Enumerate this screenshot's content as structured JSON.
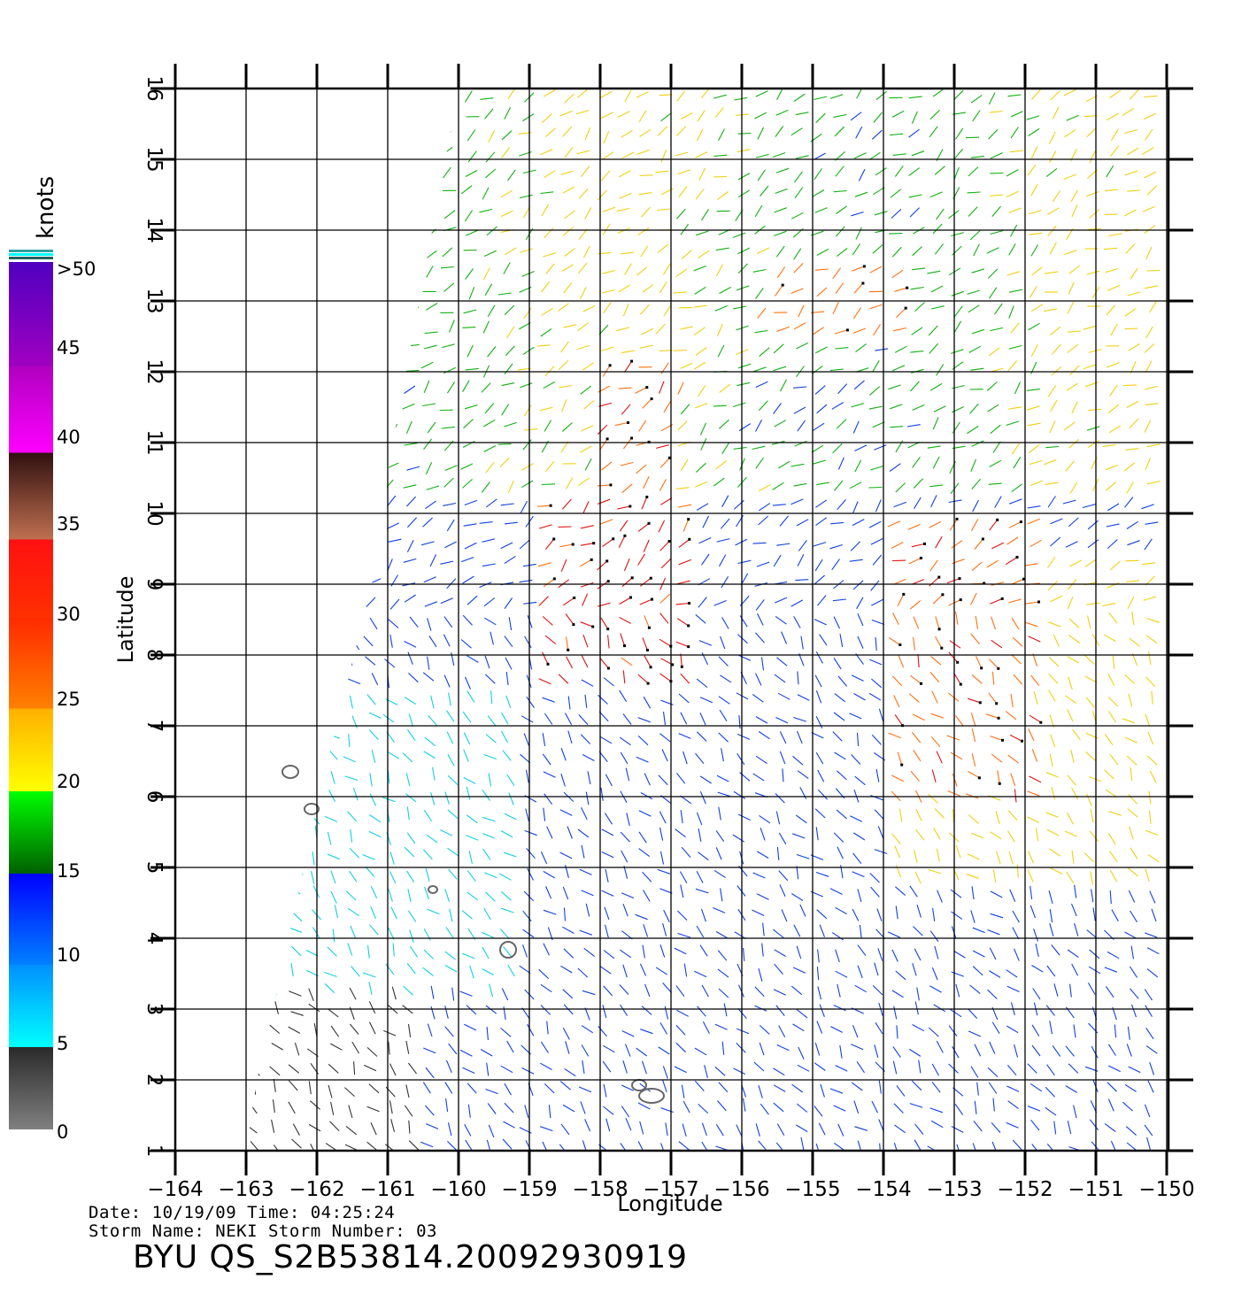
{
  "map": {
    "x_axis_label": "Longitude",
    "y_axis_label": "Latitude",
    "lon_ticks": [
      "−164",
      "−163",
      "−162",
      "−161",
      "−160",
      "−159",
      "−158",
      "−157",
      "−156",
      "−155",
      "−154",
      "−153",
      "−152",
      "−151",
      "−150"
    ],
    "lat_ticks": [
      "1",
      "2",
      "3",
      "4",
      "5",
      "6",
      "7",
      "8",
      "9",
      "10",
      "11",
      "12",
      "13",
      "14",
      "15",
      "16"
    ],
    "lon_range": [
      -164,
      -149.5
    ],
    "lat_range": [
      1,
      16
    ]
  },
  "colorbar": {
    "units": "knots",
    "labels": [
      ">50",
      "45",
      "40",
      "35",
      "30",
      "25",
      "20",
      "15",
      "10",
      "5",
      "0"
    ],
    "colors": {
      "0_5": [
        "#808080",
        "#2a2a2a"
      ],
      "5_10": [
        "#00ffff",
        "#00a0ff"
      ],
      "10_15": [
        "#0060ff",
        "#0000ff"
      ],
      "15_20": [
        "#006000",
        "#00ff00"
      ],
      "20_25": [
        "#ffff00",
        "#ffb000"
      ],
      "25_30": [
        "#ff8000",
        "#ff3000"
      ],
      "30_35": [
        "#ff3000",
        "#ff1010"
      ],
      "35_40": [
        "#c07050",
        "#301010"
      ],
      "40_45": [
        "#ff00ff",
        "#b000c0"
      ],
      "45_50": [
        "#b000c0",
        "#6000c0"
      ]
    }
  },
  "footer": {
    "date_line": "Date: 10/19/09   Time: 04:25:24",
    "storm_line": "Storm  Name: NEKI   Storm  Number: 03",
    "title": "BYU  QS_S2B53814.20092930919"
  }
}
